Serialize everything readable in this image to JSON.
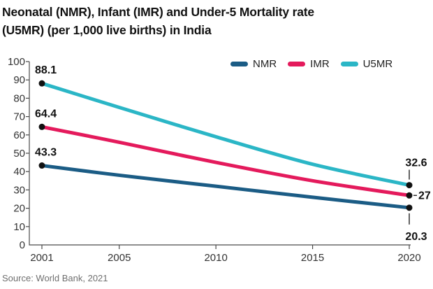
{
  "header": {
    "title_line1": "Neonatal (NMR), Infant (IMR) and Under-5 Mortality rate",
    "title_line2": "(U5MR) (per 1,000 live births) in India"
  },
  "footer": {
    "source": "Source: World Bank, 2021"
  },
  "colors": {
    "nmr": "#1b5c85",
    "imr": "#e41a5c",
    "u5mr": "#2bb6c6",
    "axis": "#4a4a4a",
    "tick_text": "#333333",
    "label_text": "#111111",
    "dot": "#111111",
    "source_text": "#6f6f6f",
    "background": "#ffffff"
  },
  "chart_data": {
    "type": "line",
    "title": "Neonatal (NMR), Infant (IMR) and Under-5 Mortality rate (U5MR) (per 1,000 live births) in India",
    "x": [
      2001,
      2005,
      2010,
      2015,
      2020
    ],
    "x_tick_labels": [
      "2001",
      "2005",
      "2010",
      "2015",
      "2020"
    ],
    "y_ticks": [
      0,
      10,
      20,
      30,
      40,
      50,
      60,
      70,
      80,
      90,
      100
    ],
    "ylim": [
      0,
      100
    ],
    "grid": false,
    "legend_position": "top-right",
    "series": [
      {
        "name": "NMR",
        "color": "#1b5c85",
        "values": [
          43.3,
          38,
          32,
          26,
          20.3
        ],
        "first_label": "43.3",
        "last_label": "20.3"
      },
      {
        "name": "IMR",
        "color": "#e41a5c",
        "values": [
          64.4,
          56,
          45,
          35,
          27
        ],
        "first_label": "64.4",
        "last_label": "27"
      },
      {
        "name": "U5MR",
        "color": "#2bb6c6",
        "values": [
          88.1,
          75,
          59,
          44,
          32.6
        ],
        "first_label": "88.1",
        "last_label": "32.6"
      }
    ],
    "source": "Source: World Bank, 2021"
  }
}
